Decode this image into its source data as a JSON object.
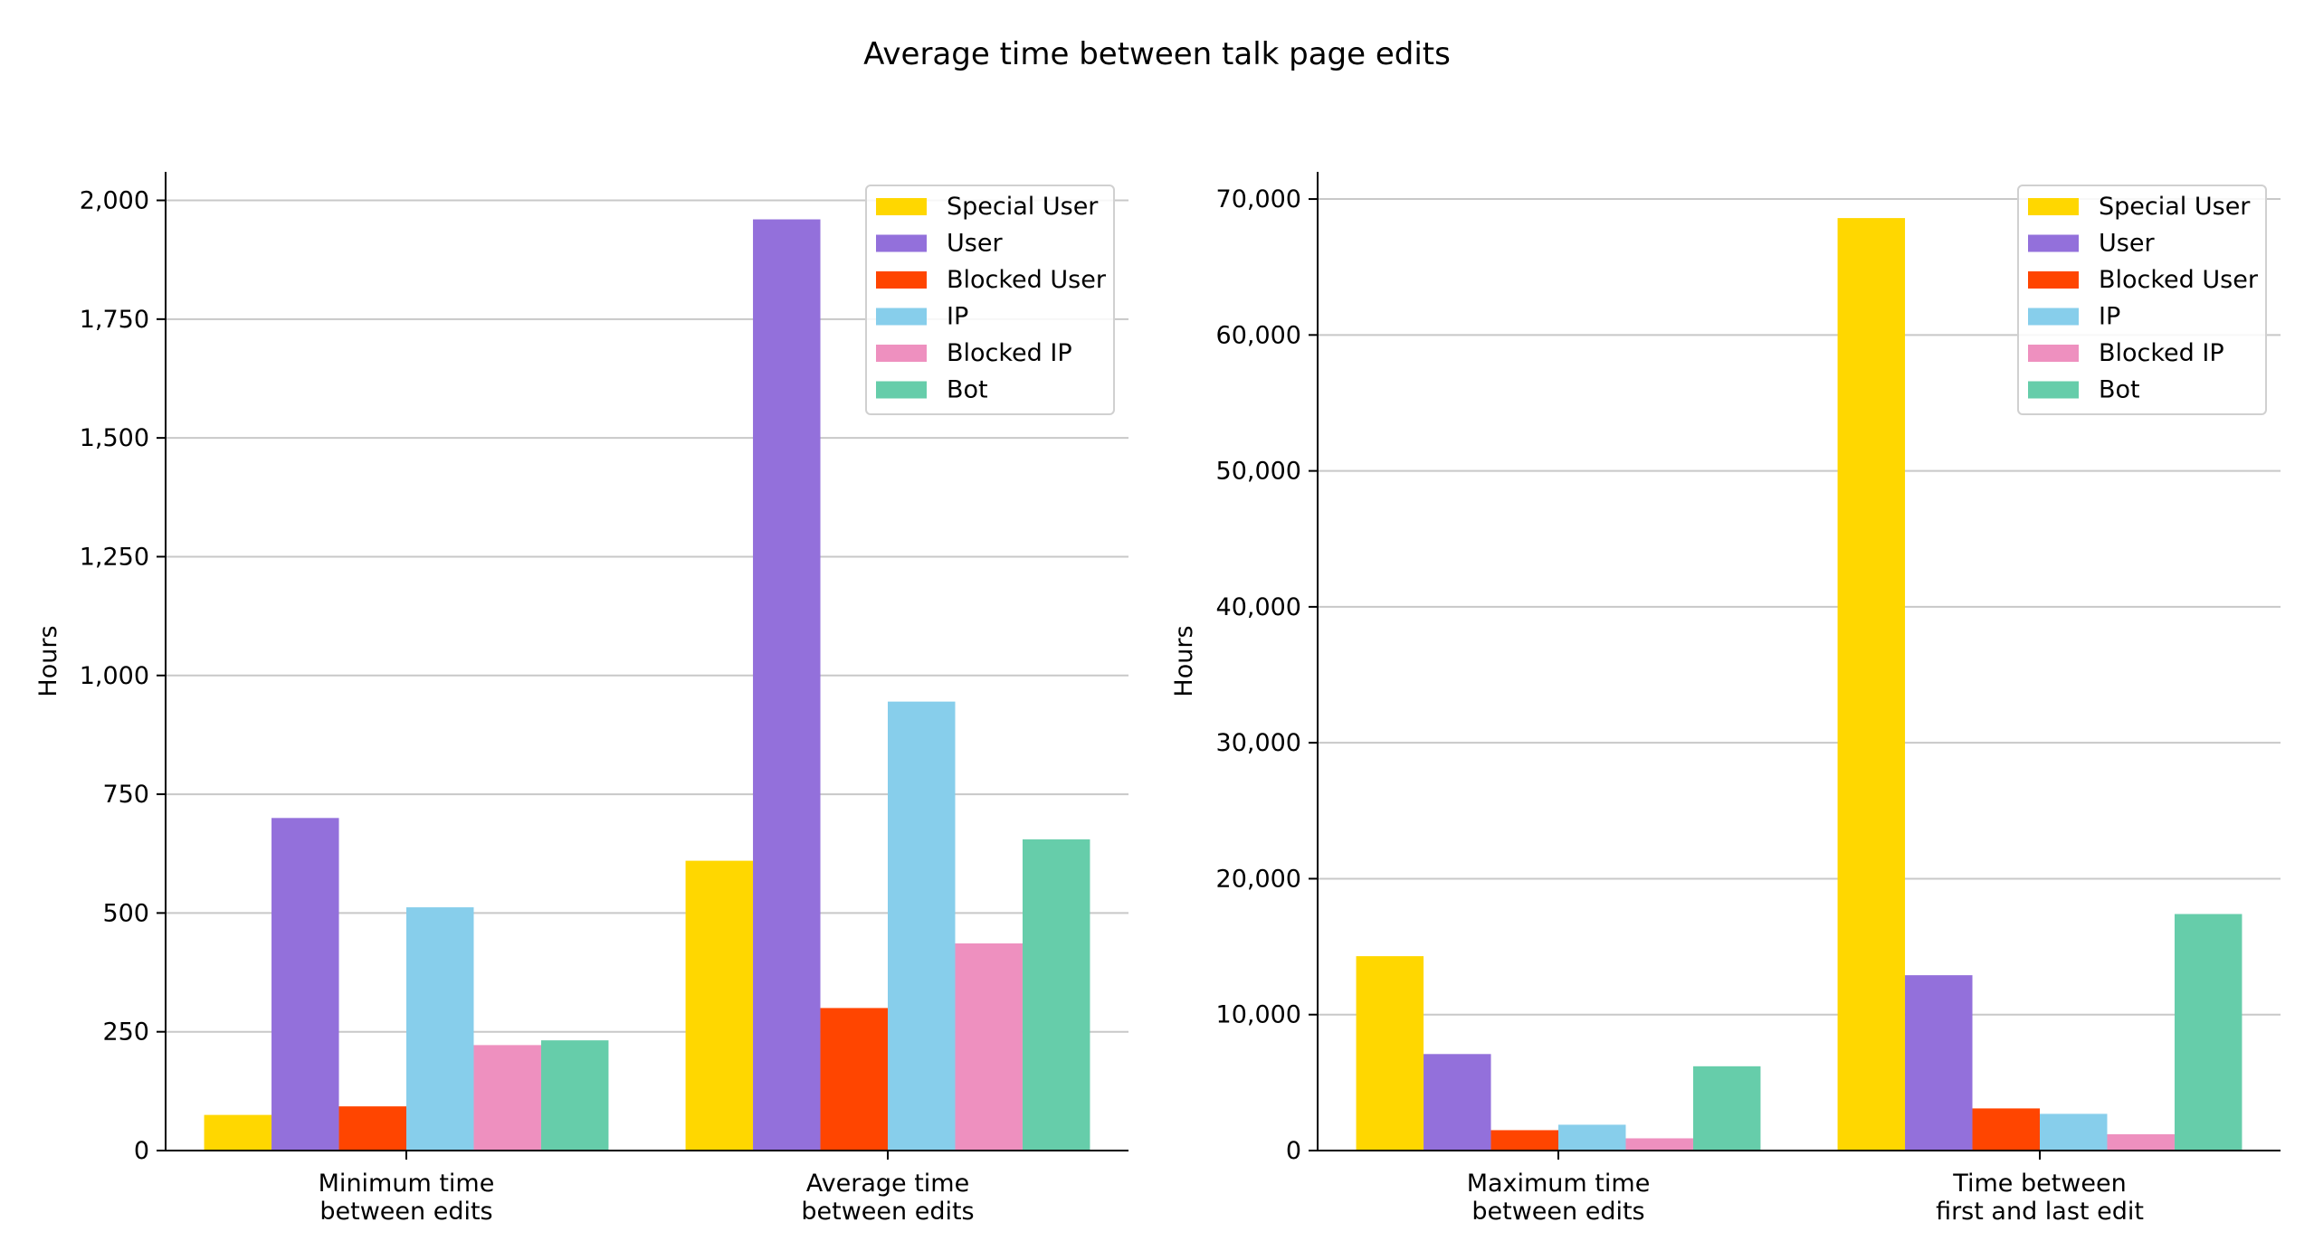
{
  "title": "Average time between talk page edits",
  "colors": {
    "Special User": "#FFD700",
    "User": "#9370DB",
    "Blocked User": "#FF4500",
    "IP": "#87CEEB",
    "Blocked IP": "#EE90BF",
    "Bot": "#66CDAA"
  },
  "chart_data": [
    {
      "type": "bar",
      "ylabel": "Hours",
      "ylim": [
        0,
        2060
      ],
      "yticks": [
        0,
        250,
        500,
        750,
        1000,
        1250,
        1500,
        1750,
        2000
      ],
      "ytick_labels": [
        "0",
        "250",
        "500",
        "750",
        "1,000",
        "1,250",
        "1,500",
        "1,750",
        "2,000"
      ],
      "grid": true,
      "legend": "top-right",
      "categories": [
        [
          "Minimum time",
          "between edits"
        ],
        [
          "Average time",
          "between edits"
        ]
      ],
      "series": [
        {
          "name": "Special User",
          "values": [
            75,
            610
          ]
        },
        {
          "name": "User",
          "values": [
            700,
            1960
          ]
        },
        {
          "name": "Blocked User",
          "values": [
            93,
            300
          ]
        },
        {
          "name": "IP",
          "values": [
            512,
            945
          ]
        },
        {
          "name": "Blocked IP",
          "values": [
            222,
            436
          ]
        },
        {
          "name": "Bot",
          "values": [
            232,
            655
          ]
        }
      ]
    },
    {
      "type": "bar",
      "ylabel": "Hours",
      "ylim": [
        0,
        72000
      ],
      "yticks": [
        0,
        10000,
        20000,
        30000,
        40000,
        50000,
        60000,
        70000
      ],
      "ytick_labels": [
        "0",
        "10,000",
        "20,000",
        "30,000",
        "40,000",
        "50,000",
        "60,000",
        "70,000"
      ],
      "grid": true,
      "legend": "top-right",
      "categories": [
        [
          "Maximum time",
          "between edits"
        ],
        [
          "Time between",
          "first and last edit"
        ]
      ],
      "series": [
        {
          "name": "Special User",
          "values": [
            14300,
            68600
          ]
        },
        {
          "name": "User",
          "values": [
            7100,
            12900
          ]
        },
        {
          "name": "Blocked User",
          "values": [
            1500,
            3100
          ]
        },
        {
          "name": "IP",
          "values": [
            1900,
            2700
          ]
        },
        {
          "name": "Blocked IP",
          "values": [
            900,
            1200
          ]
        },
        {
          "name": "Bot",
          "values": [
            6200,
            17400
          ]
        }
      ]
    }
  ]
}
